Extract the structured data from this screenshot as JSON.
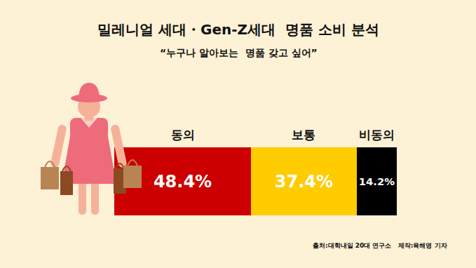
{
  "chart_data": {
    "type": "bar",
    "orientation": "horizontal",
    "stacked": true,
    "title": "밀레니얼 세대・Gen-Z세대  명품 소비 분석",
    "subtitle": "“누구나 알아보는  명품 갖고 싶어”",
    "source": "출처:대학내일 20대 연구소   제작:육해영 기자",
    "categories": [
      null
    ],
    "series": [
      {
        "name": "동의",
        "color": "#cc0000",
        "values": [
          48.4
        ],
        "value_labels": [
          "48.4%"
        ]
      },
      {
        "name": "보통",
        "color": "#ffcc00",
        "values": [
          37.4
        ],
        "value_labels": [
          "37.4%"
        ]
      },
      {
        "name": "비동의",
        "color": "#000000",
        "values": [
          14.2
        ],
        "value_labels": [
          "14.2%"
        ]
      }
    ],
    "xlim": [
      0,
      100
    ],
    "data_labels": true,
    "tick_labels": false,
    "grid": false
  }
}
